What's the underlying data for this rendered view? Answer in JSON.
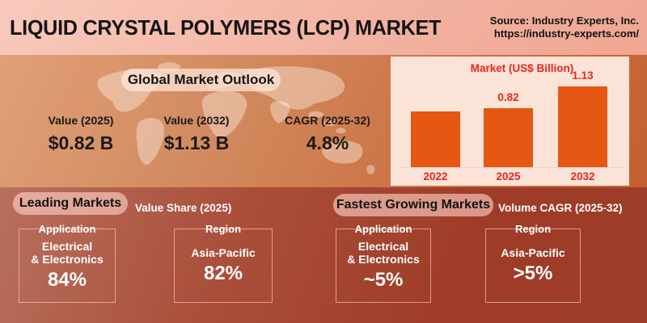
{
  "header": {
    "title": "LIQUID CRYSTAL POLYMERS (LCP) MARKET",
    "source_line1": "Source: Industry Experts, Inc.",
    "source_line2": "https://industry-experts.com/"
  },
  "outlook": {
    "badge": "Global Market Outlook",
    "stats": [
      {
        "label": "Value (2025)",
        "value": "$0.82 B"
      },
      {
        "label": "Value (2032)",
        "value": "$1.13 B"
      },
      {
        "label": "CAGR (2025-32)",
        "value": "4.8%"
      }
    ]
  },
  "chart_data": {
    "type": "bar",
    "title": "Market (US$ Billion)",
    "categories": [
      "2022",
      "2025",
      "2032"
    ],
    "values": [
      0.78,
      0.82,
      1.13
    ],
    "labels": [
      "",
      "0.82",
      "1.13"
    ],
    "ylim": [
      0,
      1.13
    ],
    "bar_color": "#e55712",
    "label_color": "#e8261c",
    "panel_bg": "#fce3d8",
    "grid": false,
    "legend": "none"
  },
  "leading": {
    "badge": "Leading Markets",
    "subtitle": "Value Share (2025)",
    "boxes": [
      {
        "label": "Application",
        "line1": "Electrical",
        "line2": "& Electronics",
        "value": "84%"
      },
      {
        "label": "Region",
        "line1": "Asia-Pacific",
        "line2": "",
        "value": "82%"
      }
    ]
  },
  "fastest": {
    "badge": "Fastest Growing Markets",
    "subtitle": "Volume CAGR (2025-32)",
    "boxes": [
      {
        "label": "Application",
        "line1": "Electrical",
        "line2": "& Electronics",
        "value": "~5%"
      },
      {
        "label": "Region",
        "line1": "Asia-Pacific",
        "line2": "",
        "value": ">5%"
      }
    ]
  },
  "colors": {
    "top_bar_bg": "#f3b3a2",
    "mid_band_bg": "#cb7446",
    "bottom_band_bg": "#a04029",
    "badge_bg": "#e9c0b2",
    "title_text": "#141414",
    "white_text": "#ffffff"
  }
}
